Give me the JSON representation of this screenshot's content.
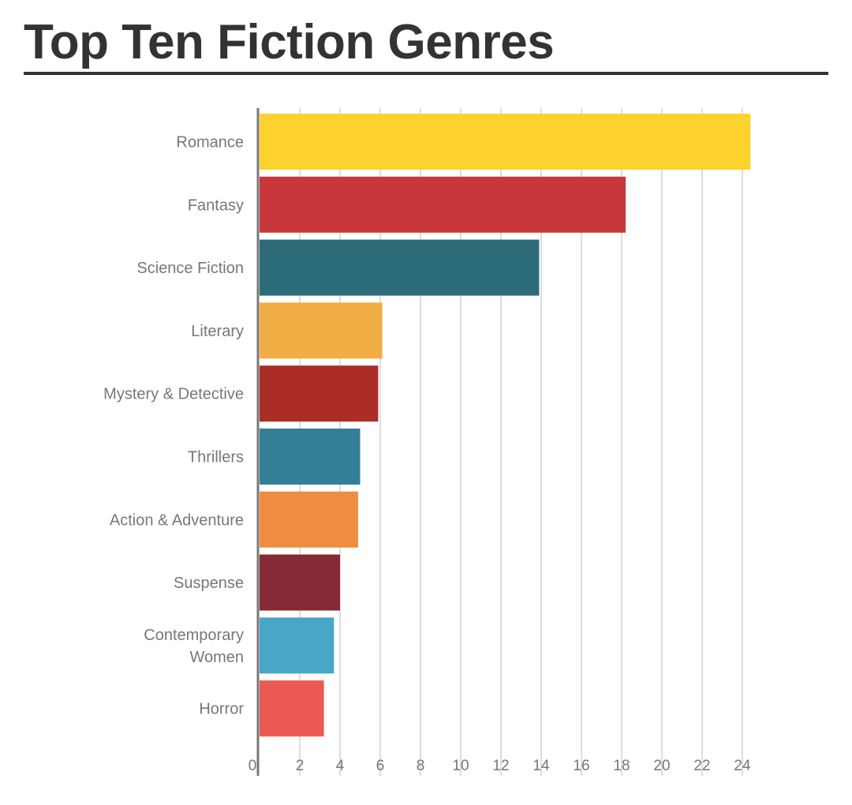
{
  "title": "Top Ten Fiction Genres",
  "chart_data": {
    "type": "bar",
    "orientation": "horizontal",
    "title": "Top Ten Fiction Genres",
    "xlabel": "",
    "ylabel": "",
    "categories": [
      "Romance",
      "Fantasy",
      "Science Fiction",
      "Literary",
      "Mystery & Detective",
      "Thrillers",
      "Action & Adventure",
      "Suspense",
      "Contemporary Women",
      "Horror"
    ],
    "label_lines": [
      [
        "Romance"
      ],
      [
        "Fantasy"
      ],
      [
        "Science Fiction"
      ],
      [
        "Literary"
      ],
      [
        "Mystery & Detective"
      ],
      [
        "Thrillers"
      ],
      [
        "Action & Adventure"
      ],
      [
        "Suspense"
      ],
      [
        "Contemporary",
        "Women"
      ],
      [
        "Horror"
      ]
    ],
    "values": [
      24.4,
      18.2,
      13.9,
      6.1,
      5.9,
      5.0,
      4.9,
      4.0,
      3.7,
      3.2
    ],
    "colors": [
      "#FDD22F",
      "#C8373A",
      "#2C6C79",
      "#F0AE45",
      "#AC2D26",
      "#337F98",
      "#F08C41",
      "#862A35",
      "#48A6C6",
      "#EA5A52"
    ],
    "xlim": [
      0,
      24.5
    ],
    "xticks": [
      0,
      2,
      4,
      6,
      8,
      10,
      12,
      14,
      16,
      18,
      20,
      22,
      24
    ],
    "grid": true,
    "legend": "none"
  }
}
